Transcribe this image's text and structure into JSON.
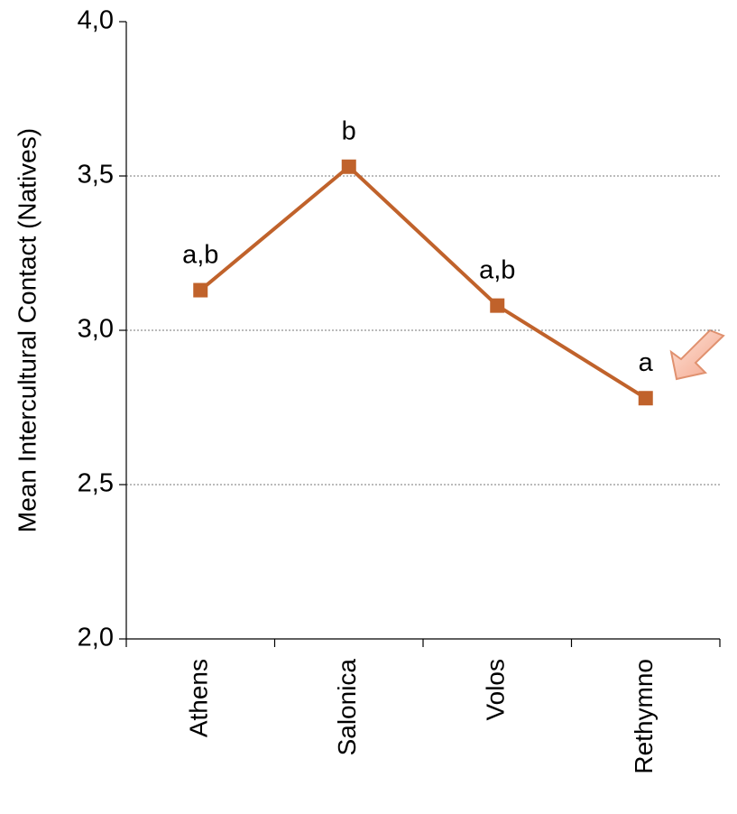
{
  "chart_data": {
    "type": "line",
    "y_label": "Mean Intercultural Contact (Natives)",
    "categories": [
      "Athens",
      "Salonica",
      "Volos",
      "Rethymno"
    ],
    "series": [
      {
        "color": "#c0622b",
        "values": [
          3.13,
          3.53,
          3.08,
          2.78
        ]
      }
    ],
    "annotations": [
      "a,b",
      "b",
      "a,b",
      "a"
    ],
    "ylim": [
      2,
      4
    ],
    "yticks": [
      {
        "value": 2,
        "label": "2,0"
      },
      {
        "value": 2.5,
        "label": "2,5"
      },
      {
        "value": 3,
        "label": "3,0"
      },
      {
        "value": 3.5,
        "label": "3,5"
      },
      {
        "value": 4,
        "label": "4,0"
      }
    ],
    "grid": true
  }
}
